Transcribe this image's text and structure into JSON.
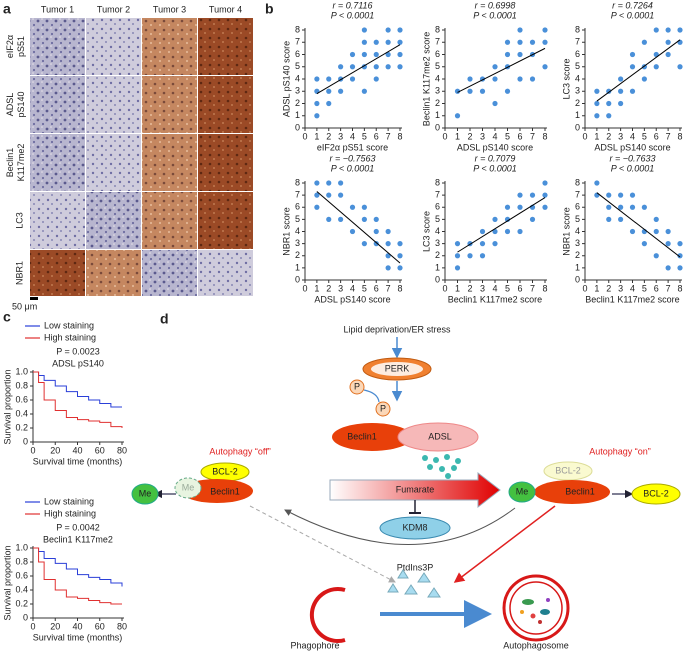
{
  "panel_labels": [
    "a",
    "b",
    "c",
    "d"
  ],
  "panel_a": {
    "columns": [
      "Tumor 1",
      "Tumor 2",
      "Tumor 3",
      "Tumor 4"
    ],
    "rows": [
      "eIF2α pS51",
      "ADSL pS140",
      "Beclin1 K117me2",
      "LC3",
      "NBR1"
    ],
    "scale_bar": "50 μm"
  },
  "chart_data": [
    {
      "type": "scatter",
      "title": "r = 0.7116",
      "subtitle": "P < 0.0001",
      "xlabel": "eIF2α pS51 score",
      "ylabel": "ADSL pS140 score",
      "color": "#4a90d9",
      "x": [
        1,
        1,
        1,
        1,
        2,
        2,
        2,
        3,
        3,
        3,
        4,
        4,
        4,
        5,
        5,
        5,
        5,
        5,
        6,
        6,
        6,
        6,
        7,
        7,
        7,
        7,
        8,
        8,
        8,
        8
      ],
      "values": [
        1,
        2,
        3,
        4,
        2,
        3,
        4,
        3,
        4,
        5,
        4,
        5,
        6,
        3,
        5,
        6,
        7,
        8,
        4,
        5,
        6,
        7,
        5,
        6,
        7,
        8,
        5,
        6,
        7,
        8
      ],
      "fit": {
        "x": [
          1,
          8
        ],
        "values": [
          2.8,
          6.8
        ]
      },
      "xlim": [
        0,
        8
      ],
      "ylim": [
        0,
        8
      ],
      "xticks": [
        0,
        1,
        2,
        3,
        4,
        5,
        6,
        7,
        8
      ],
      "yticks": [
        0,
        1,
        2,
        3,
        4,
        5,
        6,
        7,
        8
      ]
    },
    {
      "type": "scatter",
      "title": "r = 0.6998",
      "subtitle": "P < 0.0001",
      "xlabel": "ADSL pS140 score",
      "ylabel": "Beclin1 K117me2 score",
      "color": "#4a90d9",
      "x": [
        1,
        1,
        2,
        2,
        3,
        3,
        4,
        4,
        4,
        5,
        5,
        5,
        5,
        6,
        6,
        6,
        6,
        7,
        7,
        7,
        8,
        8,
        8
      ],
      "values": [
        1,
        3,
        3,
        4,
        3,
        4,
        2,
        4,
        5,
        3,
        5,
        6,
        7,
        4,
        6,
        7,
        8,
        4,
        6,
        7,
        5,
        7,
        8
      ],
      "fit": {
        "x": [
          1,
          8
        ],
        "values": [
          2.9,
          6.5
        ]
      },
      "xlim": [
        0,
        8
      ],
      "ylim": [
        0,
        8
      ],
      "xticks": [
        0,
        1,
        2,
        3,
        4,
        5,
        6,
        7,
        8
      ],
      "yticks": [
        0,
        1,
        2,
        3,
        4,
        5,
        6,
        7,
        8
      ]
    },
    {
      "type": "scatter",
      "title": "r = 0.7264",
      "subtitle": "P < 0.0001",
      "xlabel": "ADSL pS140 score",
      "ylabel": "LC3 score",
      "color": "#4a90d9",
      "x": [
        1,
        1,
        1,
        2,
        2,
        2,
        3,
        3,
        3,
        4,
        4,
        4,
        5,
        5,
        5,
        6,
        6,
        6,
        7,
        7,
        7,
        8,
        8,
        8
      ],
      "values": [
        1,
        2,
        3,
        1,
        2,
        3,
        2,
        3,
        4,
        3,
        5,
        6,
        4,
        5,
        7,
        5,
        6,
        8,
        6,
        7,
        8,
        5,
        7,
        8
      ],
      "fit": {
        "x": [
          1,
          8
        ],
        "values": [
          2.2,
          7.2
        ]
      },
      "xlim": [
        0,
        8
      ],
      "ylim": [
        0,
        8
      ],
      "xticks": [
        0,
        1,
        2,
        3,
        4,
        5,
        6,
        7,
        8
      ],
      "yticks": [
        0,
        1,
        2,
        3,
        4,
        5,
        6,
        7,
        8
      ]
    },
    {
      "type": "scatter",
      "title": "r = −0.7563",
      "subtitle": "P < 0.0001",
      "xlabel": "ADSL pS140 score",
      "ylabel": "NBR1 score",
      "color": "#4a90d9",
      "x": [
        1,
        1,
        1,
        2,
        2,
        2,
        3,
        3,
        3,
        4,
        4,
        5,
        5,
        5,
        6,
        6,
        6,
        7,
        7,
        7,
        7,
        8,
        8,
        8
      ],
      "values": [
        8,
        7,
        6,
        7,
        5,
        8,
        5,
        7,
        8,
        4,
        6,
        3,
        5,
        6,
        3,
        4,
        5,
        1,
        2,
        3,
        4,
        1,
        2,
        3
      ],
      "fit": {
        "x": [
          1,
          8
        ],
        "values": [
          7.3,
          1.4
        ]
      },
      "xlim": [
        0,
        8
      ],
      "ylim": [
        0,
        8
      ],
      "xticks": [
        0,
        1,
        2,
        3,
        4,
        5,
        6,
        7,
        8
      ],
      "yticks": [
        0,
        1,
        2,
        3,
        4,
        5,
        6,
        7,
        8
      ]
    },
    {
      "type": "scatter",
      "title": "r = 0.7079",
      "subtitle": "P < 0.0001",
      "xlabel": "Beclin1 K117me2 score",
      "ylabel": "LC3 score",
      "color": "#4a90d9",
      "x": [
        1,
        1,
        1,
        2,
        2,
        3,
        3,
        3,
        4,
        4,
        4,
        5,
        5,
        5,
        6,
        6,
        6,
        7,
        7,
        7,
        8,
        8,
        8
      ],
      "values": [
        1,
        2,
        3,
        2,
        3,
        2,
        3,
        4,
        3,
        4,
        5,
        4,
        5,
        6,
        4,
        6,
        7,
        5,
        6,
        7,
        6,
        7,
        8
      ],
      "fit": {
        "x": [
          1,
          8
        ],
        "values": [
          2.3,
          6.8
        ]
      },
      "xlim": [
        0,
        8
      ],
      "ylim": [
        0,
        8
      ],
      "xticks": [
        0,
        1,
        2,
        3,
        4,
        5,
        6,
        7,
        8
      ],
      "yticks": [
        0,
        1,
        2,
        3,
        4,
        5,
        6,
        7,
        8
      ]
    },
    {
      "type": "scatter",
      "title": "r = −0.7633",
      "subtitle": "P < 0.0001",
      "xlabel": "Beclin1 K117me2 score",
      "ylabel": "NBR1 score",
      "color": "#4a90d9",
      "x": [
        1,
        1,
        2,
        2,
        2,
        3,
        3,
        3,
        4,
        4,
        4,
        5,
        5,
        5,
        6,
        6,
        6,
        7,
        7,
        7,
        8,
        8,
        8
      ],
      "values": [
        8,
        7,
        7,
        6,
        5,
        7,
        6,
        5,
        4,
        6,
        7,
        3,
        4,
        6,
        2,
        4,
        5,
        1,
        3,
        4,
        1,
        2,
        3
      ],
      "fit": {
        "x": [
          1,
          8
        ],
        "values": [
          7.2,
          1.9
        ]
      },
      "xlim": [
        0,
        8
      ],
      "ylim": [
        0,
        8
      ],
      "xticks": [
        0,
        1,
        2,
        3,
        4,
        5,
        6,
        7,
        8
      ],
      "yticks": [
        0,
        1,
        2,
        3,
        4,
        5,
        6,
        7,
        8
      ]
    },
    {
      "type": "line",
      "annotation": "P = 0.0023",
      "title": "ADSL pS140",
      "xlabel": "Survival time (months)",
      "ylabel": "Survival proportion",
      "x": [
        0,
        5,
        10,
        20,
        30,
        40,
        50,
        60,
        70,
        80
      ],
      "series": [
        {
          "name": "Low staining",
          "color": "#2a3fd8",
          "values": [
            1,
            0.95,
            0.88,
            0.8,
            0.72,
            0.65,
            0.6,
            0.55,
            0.5,
            0.5
          ]
        },
        {
          "name": "High staining",
          "color": "#e03030",
          "values": [
            1,
            0.85,
            0.6,
            0.45,
            0.35,
            0.32,
            0.3,
            0.28,
            0.22,
            0.2
          ]
        }
      ],
      "xlim": [
        0,
        80
      ],
      "ylim": [
        0,
        1
      ],
      "xticks": [
        0,
        20,
        40,
        60,
        80
      ],
      "yticks": [
        0,
        0.2,
        0.4,
        0.6,
        0.8,
        {
          "value": 1,
          "label": "1.0"
        }
      ]
    },
    {
      "type": "line",
      "annotation": "P = 0.0042",
      "title": "Beclin1 K117me2",
      "xlabel": "Survival time (months)",
      "ylabel": "Survival proportion",
      "x": [
        0,
        5,
        10,
        20,
        30,
        40,
        50,
        60,
        70,
        80
      ],
      "series": [
        {
          "name": "Low staining",
          "color": "#2a3fd8",
          "values": [
            1,
            0.95,
            0.85,
            0.78,
            0.7,
            0.62,
            0.58,
            0.55,
            0.5,
            0.45
          ]
        },
        {
          "name": "High staining",
          "color": "#e03030",
          "values": [
            1,
            0.8,
            0.55,
            0.4,
            0.3,
            0.28,
            0.25,
            0.22,
            0.2,
            0.2
          ]
        }
      ],
      "xlim": [
        0,
        80
      ],
      "ylim": [
        0,
        1
      ],
      "xticks": [
        0,
        20,
        40,
        60,
        80
      ],
      "yticks": [
        0,
        0.2,
        0.4,
        0.6,
        0.8,
        {
          "value": 1,
          "label": "1.0"
        }
      ]
    }
  ],
  "diagram": {
    "nodes": [
      "Lipid deprivation/ER stress",
      "PERK",
      "P",
      "P",
      "Beclin1",
      "ADSL",
      "Autophagy “off”",
      "BCL-2",
      "Me",
      "Me",
      "Beclin1",
      "Fumarate",
      "KDM8",
      "Me",
      "BCL-2",
      "Beclin1",
      "BCL-2",
      "Autophagy “on”",
      "PtdIns3P",
      "Phagophore",
      "Autophagosome"
    ]
  }
}
